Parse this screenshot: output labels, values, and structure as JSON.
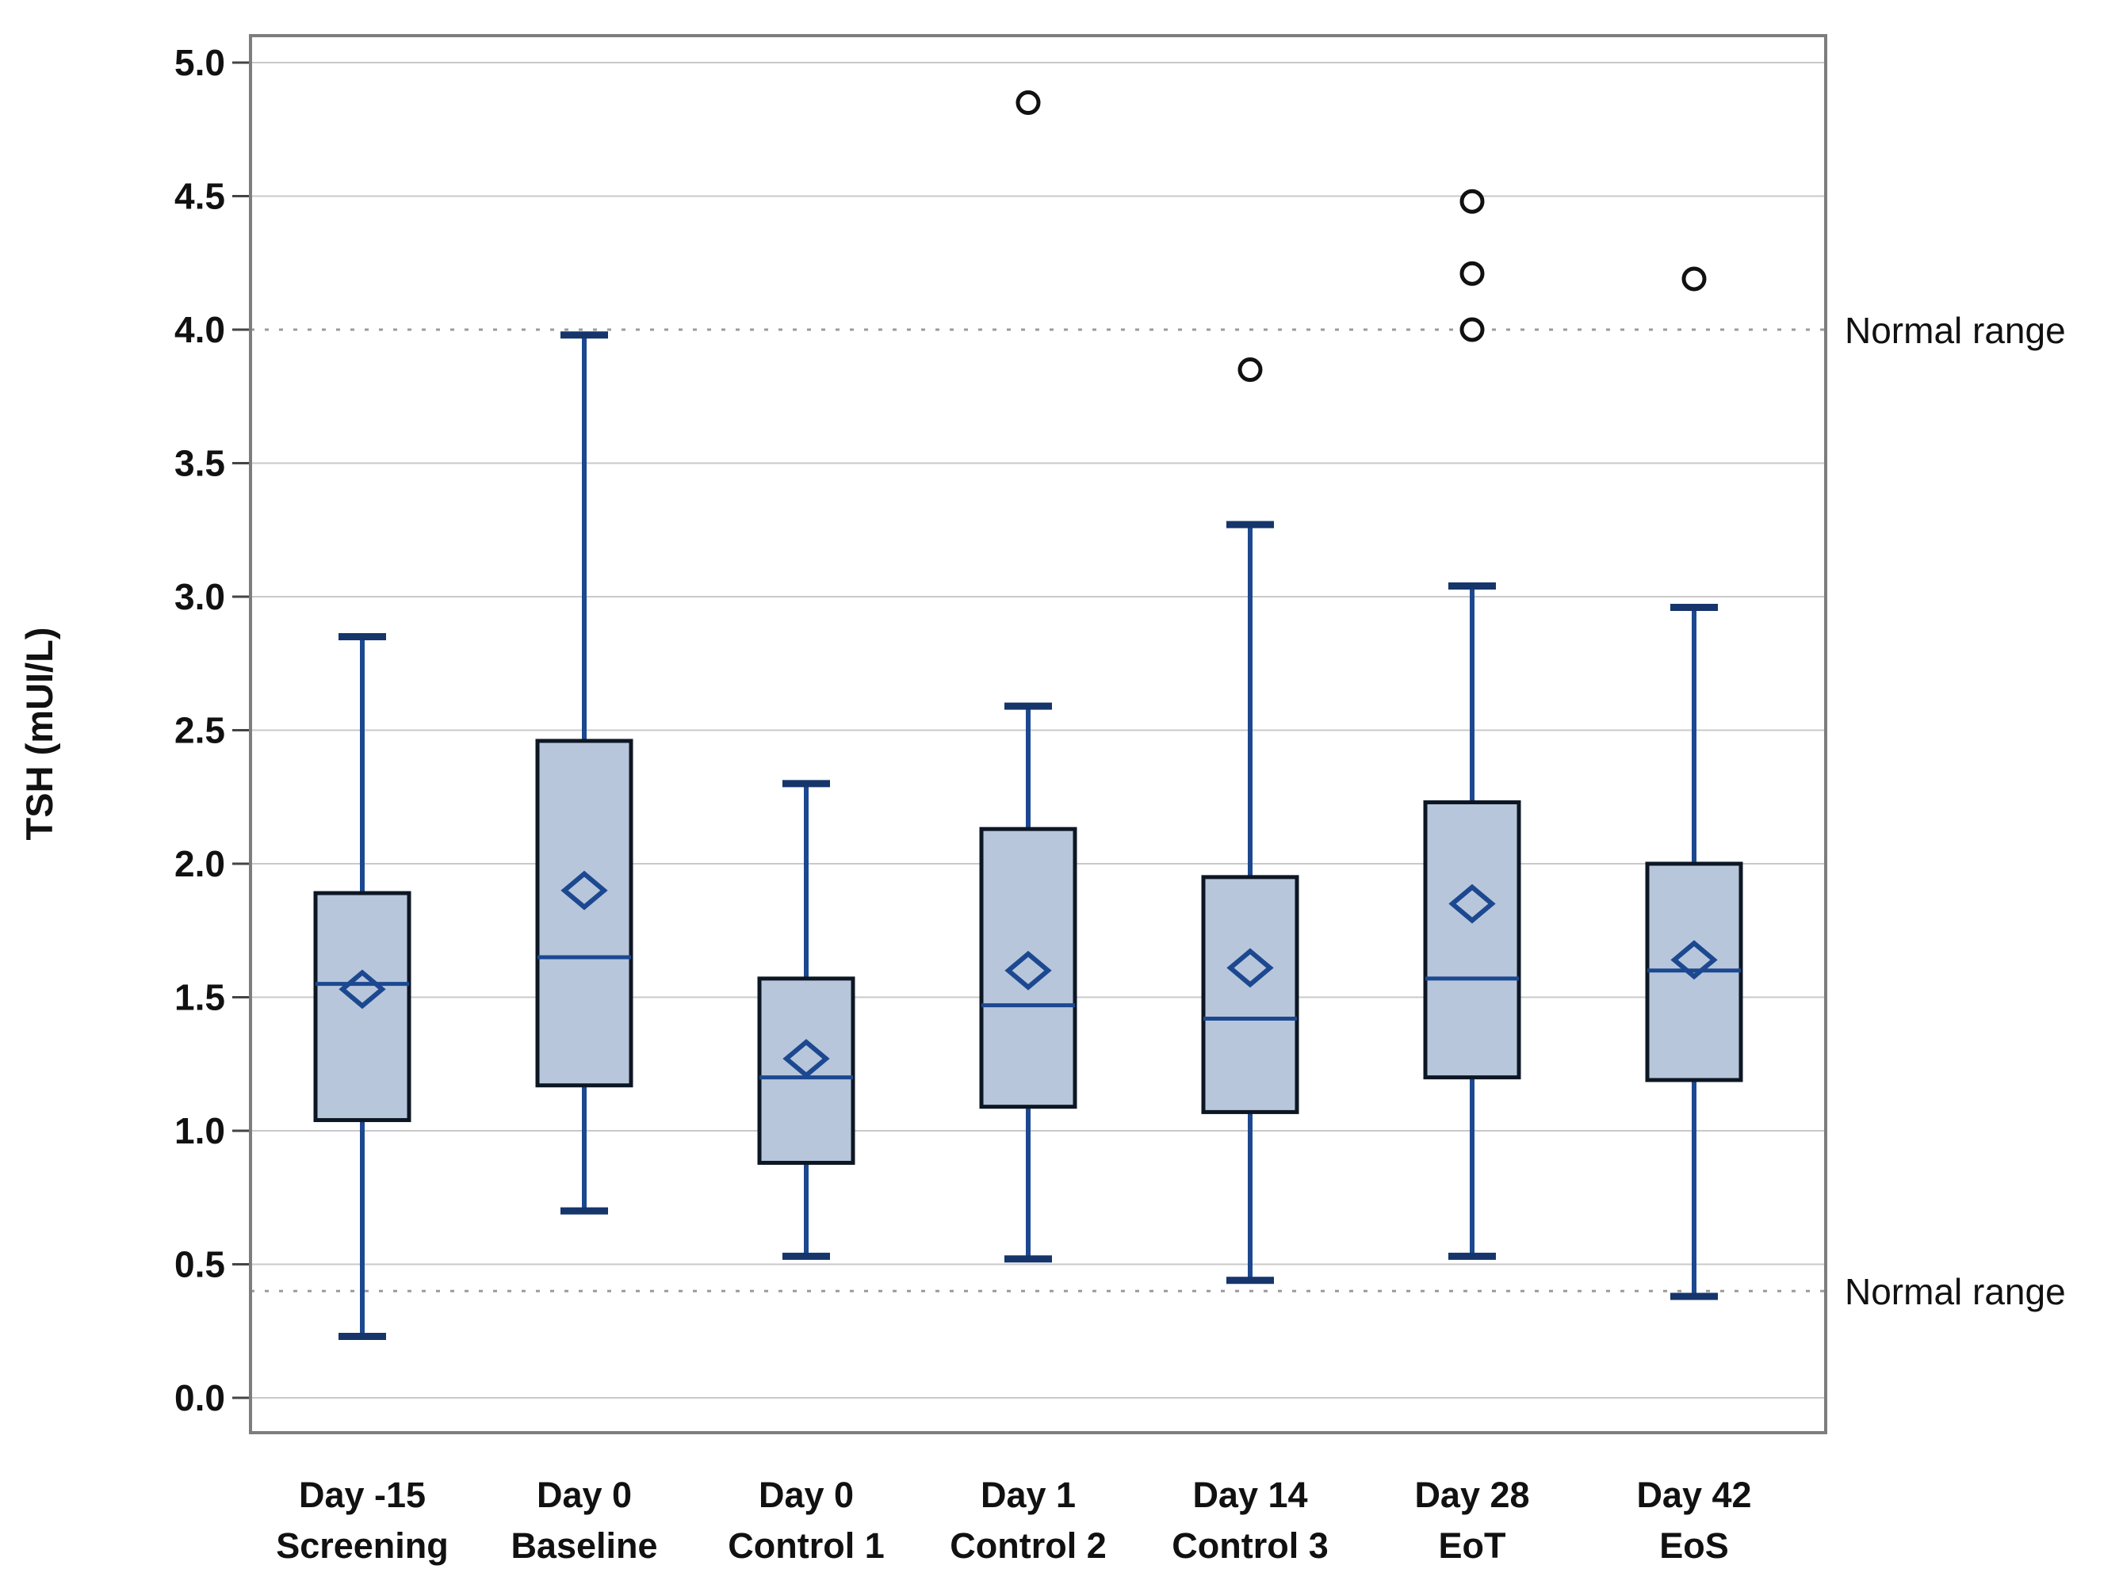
{
  "y_axis": {
    "label": "TSH (mUI/L)",
    "min": 0.0,
    "max": 5.0
  },
  "normal_range": {
    "upper_value": 4.0,
    "lower_value": 0.4,
    "upper_label": "Normal range",
    "lower_label": "Normal range"
  },
  "chart_data": {
    "type": "box",
    "title": "",
    "xlabel": "",
    "ylabel": "TSH (mUI/L)",
    "ylim": [
      -0.13,
      5.1
    ],
    "grid": true,
    "yticks": [
      5.0,
      4.5,
      4.0,
      3.5,
      3.0,
      2.5,
      2.0,
      1.5,
      1.0,
      0.5,
      0.0
    ],
    "tick_labels": [
      "5.0",
      "4.5",
      "4.0",
      "3.5",
      "3.0",
      "2.5",
      "2.0",
      "1.5",
      "1.0",
      "0.5",
      "0.0"
    ],
    "categories": [
      [
        "Day -15",
        "Screening"
      ],
      [
        "Day 0",
        "Baseline"
      ],
      [
        "Day 0",
        "Control 1"
      ],
      [
        "Day 1",
        "Control 2"
      ],
      [
        "Day 14",
        "Control 3"
      ],
      [
        "Day 28",
        "EoT"
      ],
      [
        "Day 42",
        "EoS"
      ]
    ],
    "series": [
      {
        "category": "Day -15 Screening",
        "whisker_low": 0.23,
        "q1": 1.04,
        "median": 1.55,
        "mean": 1.53,
        "q3": 1.89,
        "whisker_high": 2.85,
        "outliers": []
      },
      {
        "category": "Day 0 Baseline",
        "whisker_low": 0.7,
        "q1": 1.17,
        "median": 1.65,
        "mean": 1.9,
        "q3": 2.46,
        "whisker_high": 3.98,
        "outliers": []
      },
      {
        "category": "Day 0 Control 1",
        "whisker_low": 0.53,
        "q1": 0.88,
        "median": 1.2,
        "mean": 1.27,
        "q3": 1.57,
        "whisker_high": 2.3,
        "outliers": []
      },
      {
        "category": "Day 1 Control 2",
        "whisker_low": 0.52,
        "q1": 1.09,
        "median": 1.47,
        "mean": 1.6,
        "q3": 2.13,
        "whisker_high": 2.59,
        "outliers": [
          4.85
        ]
      },
      {
        "category": "Day 14 Control 3",
        "whisker_low": 0.44,
        "q1": 1.07,
        "median": 1.42,
        "mean": 1.61,
        "q3": 1.95,
        "whisker_high": 3.27,
        "outliers": [
          3.85
        ]
      },
      {
        "category": "Day 28 EoT",
        "whisker_low": 0.53,
        "q1": 1.2,
        "median": 1.57,
        "mean": 1.85,
        "q3": 2.23,
        "whisker_high": 3.04,
        "outliers": [
          4.48,
          4.21,
          4.0
        ]
      },
      {
        "category": "Day 42 EoS",
        "whisker_low": 0.38,
        "q1": 1.19,
        "median": 1.6,
        "mean": 1.64,
        "q3": 2.0,
        "whisker_high": 2.96,
        "outliers": [
          4.19
        ]
      }
    ],
    "reference_lines": [
      {
        "value": 4.0,
        "label": "Normal range"
      },
      {
        "value": 0.4,
        "label": "Normal range"
      }
    ],
    "legend_position": "none"
  },
  "colors": {
    "box_fill": "#b8c6db",
    "box_stroke": "#0d1724",
    "blue_line": "#1c4890",
    "cap_color": "#15356b",
    "grid_color": "#c9c9c9",
    "dash_color": "#9b9b9b",
    "frame_color": "#7d7d7d",
    "text_color": "#111111",
    "outlier_stroke": "#111111",
    "outlier_fill": "#ffffff",
    "background": "#ffffff"
  }
}
